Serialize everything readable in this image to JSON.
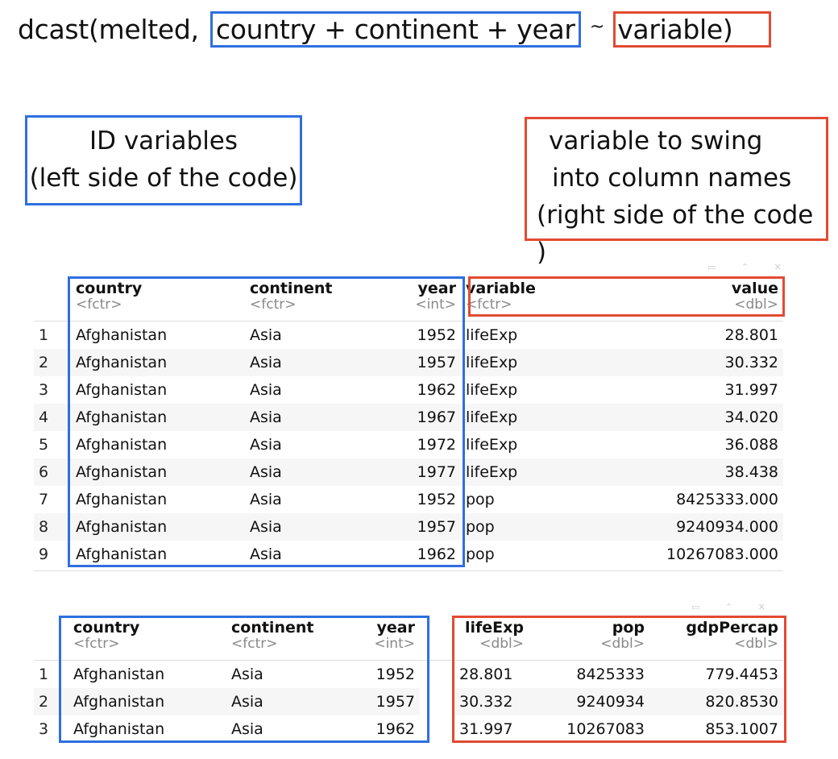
{
  "code": {
    "prefix": "dcast(melted,",
    "lhs": "country + continent + year",
    "tilde": "~",
    "rhs": "variable)"
  },
  "notes": {
    "left_line1": "ID variables",
    "left_line2": "(left side of the code)",
    "right_line1": "variable to swing",
    "right_line2": "into column names",
    "right_line3": "(right side of the code )"
  },
  "table1": {
    "columns": [
      {
        "name": "country",
        "type": "<fctr>"
      },
      {
        "name": "continent",
        "type": "<fctr>"
      },
      {
        "name": "year",
        "type": "<int>"
      },
      {
        "name": "variable",
        "type": "<fctr>"
      },
      {
        "name": "value",
        "type": "<dbl>"
      }
    ],
    "rows": [
      [
        "1",
        "Afghanistan",
        "Asia",
        "1952",
        "lifeExp",
        "28.801"
      ],
      [
        "2",
        "Afghanistan",
        "Asia",
        "1957",
        "lifeExp",
        "30.332"
      ],
      [
        "3",
        "Afghanistan",
        "Asia",
        "1962",
        "lifeExp",
        "31.997"
      ],
      [
        "4",
        "Afghanistan",
        "Asia",
        "1967",
        "lifeExp",
        "34.020"
      ],
      [
        "5",
        "Afghanistan",
        "Asia",
        "1972",
        "lifeExp",
        "36.088"
      ],
      [
        "6",
        "Afghanistan",
        "Asia",
        "1977",
        "lifeExp",
        "38.438"
      ],
      [
        "7",
        "Afghanistan",
        "Asia",
        "1952",
        "pop",
        "8425333.000"
      ],
      [
        "8",
        "Afghanistan",
        "Asia",
        "1957",
        "pop",
        "9240934.000"
      ],
      [
        "9",
        "Afghanistan",
        "Asia",
        "1962",
        "pop",
        "10267083.000"
      ]
    ]
  },
  "table2": {
    "columns": [
      {
        "name": "country",
        "type": "<fctr>"
      },
      {
        "name": "continent",
        "type": "<fctr>"
      },
      {
        "name": "year",
        "type": "<int>"
      },
      {
        "name": "lifeExp",
        "type": "<dbl>"
      },
      {
        "name": "pop",
        "type": "<dbl>"
      },
      {
        "name": "gdpPercap",
        "type": "<dbl>"
      }
    ],
    "rows": [
      [
        "1",
        "Afghanistan",
        "Asia",
        "1952",
        "28.801",
        "8425333",
        "779.4453"
      ],
      [
        "2",
        "Afghanistan",
        "Asia",
        "1957",
        "30.332",
        "9240934",
        "820.8530"
      ],
      [
        "3",
        "Afghanistan",
        "Asia",
        "1962",
        "31.997",
        "10267083",
        "853.1007"
      ]
    ]
  },
  "colors": {
    "id_box": "#2f6fe0",
    "var_box": "#e14b32"
  }
}
